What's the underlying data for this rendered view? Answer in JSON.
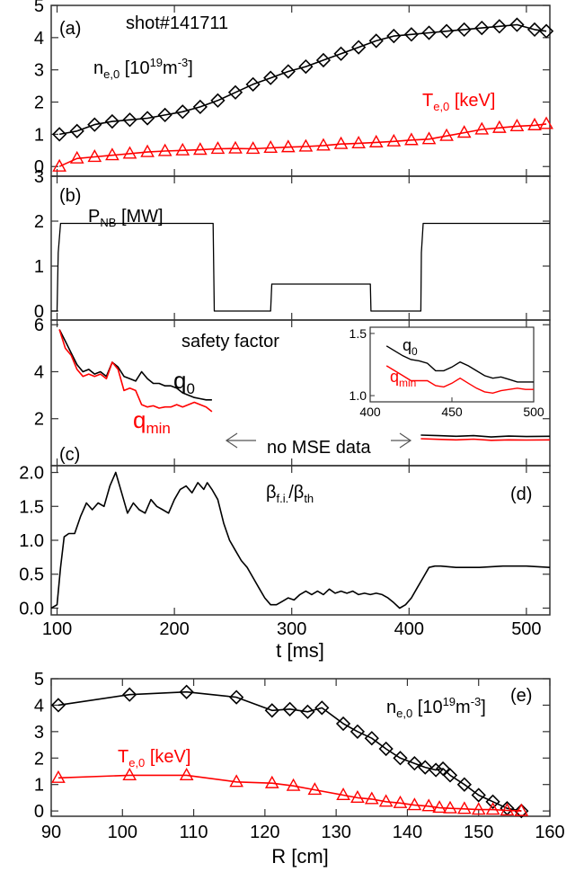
{
  "colors": {
    "black": "#000000",
    "red": "#ff0000",
    "frame": "#333333"
  },
  "panels": {
    "a": {
      "letter": "(a)",
      "shot": "shot#141711",
      "label_ne": {
        "base": "n",
        "sub": "e,0",
        "tail": " [10",
        "sup": "19",
        "tail2": "m",
        "sup2": "-3",
        "end": "]"
      },
      "label_te": {
        "base": "T",
        "sub": "e,0",
        "tail": " [keV]"
      }
    },
    "b": {
      "letter": "(b)",
      "label": {
        "base": "P",
        "sub": "NB",
        "tail": " [MW]"
      }
    },
    "c": {
      "letter": "(c)",
      "title": "safety factor",
      "q0": {
        "base": "q",
        "sub": "0"
      },
      "qmin": {
        "base": "q",
        "sub": "min"
      },
      "no_mse": "no MSE data"
    },
    "d": {
      "letter": "(d)",
      "label": {
        "base": "β",
        "sub": "f.i.",
        "mid": "/β",
        "sub2": "th"
      }
    },
    "e": {
      "letter": "(e)",
      "label_ne": {
        "base": "n",
        "sub": "e,0",
        "tail": " [10",
        "sup": "19",
        "tail2": "m",
        "sup2": "-3",
        "end": "]"
      },
      "label_te": {
        "base": "T",
        "sub": "e,0",
        "tail": " [keV]"
      }
    },
    "time_axis": {
      "label": "t  [ms]",
      "ticks": [
        "100",
        "200",
        "300",
        "400",
        "500"
      ]
    },
    "r_axis": {
      "label": "R  [cm]",
      "ticks": [
        "90",
        "100",
        "110",
        "120",
        "130",
        "140",
        "150",
        "160"
      ]
    }
  },
  "chart_data": [
    {
      "id": "a",
      "type": "line",
      "xlim": [
        95,
        520
      ],
      "ylim": [
        -0.3,
        5.0
      ],
      "yticks": [
        "0",
        "1",
        "2",
        "3",
        "4",
        "5"
      ],
      "series": [
        {
          "name": "n_e,0",
          "color": "#000000",
          "marker": "diamond",
          "x": [
            102,
            117,
            132,
            147,
            162,
            177,
            192,
            207,
            222,
            237,
            252,
            267,
            282,
            297,
            312,
            327,
            342,
            357,
            372,
            387,
            402,
            417,
            432,
            447,
            462,
            477,
            492,
            507,
            517
          ],
          "y": [
            1.0,
            1.1,
            1.3,
            1.4,
            1.45,
            1.5,
            1.6,
            1.7,
            1.85,
            2.05,
            2.3,
            2.55,
            2.75,
            2.95,
            3.1,
            3.3,
            3.5,
            3.7,
            3.9,
            4.05,
            4.1,
            4.15,
            4.2,
            4.25,
            4.3,
            4.35,
            4.4,
            4.25,
            4.2
          ]
        },
        {
          "name": "T_e,0",
          "color": "#ff0000",
          "marker": "triangle",
          "x": [
            102,
            117,
            132,
            147,
            162,
            177,
            192,
            207,
            222,
            237,
            252,
            267,
            282,
            297,
            312,
            327,
            342,
            357,
            372,
            387,
            402,
            417,
            432,
            447,
            462,
            477,
            492,
            507,
            517
          ],
          "y": [
            0.0,
            0.25,
            0.3,
            0.35,
            0.4,
            0.45,
            0.48,
            0.5,
            0.52,
            0.55,
            0.56,
            0.55,
            0.58,
            0.6,
            0.62,
            0.65,
            0.7,
            0.72,
            0.75,
            0.78,
            0.82,
            0.85,
            0.95,
            1.05,
            1.15,
            1.2,
            1.25,
            1.28,
            1.32
          ]
        }
      ]
    },
    {
      "id": "b",
      "type": "line",
      "xlim": [
        95,
        520
      ],
      "ylim": [
        -0.2,
        3.0
      ],
      "yticks": [
        "0",
        "1",
        "2",
        "3"
      ],
      "series": [
        {
          "name": "P_NB",
          "color": "#000000",
          "x": [
            95,
            100,
            101,
            103,
            233,
            234,
            282,
            283,
            284,
            366,
            367,
            367.5,
            410,
            410.5,
            412,
            520
          ],
          "y": [
            0,
            0,
            1.3,
            1.95,
            1.95,
            0,
            0,
            0.6,
            0.6,
            0.6,
            0.6,
            0,
            0,
            1.3,
            1.95,
            1.95
          ]
        }
      ]
    },
    {
      "id": "c",
      "type": "line",
      "xlim": [
        95,
        520
      ],
      "ylim": [
        0.0,
        6.2
      ],
      "yticks": [
        "2",
        "4",
        "6"
      ],
      "series": [
        {
          "name": "q0",
          "color": "#000000",
          "x": [
            102,
            107,
            112,
            117,
            122,
            127,
            132,
            137,
            142,
            147,
            152,
            157,
            162,
            167,
            172,
            177,
            182,
            187,
            192,
            197,
            202,
            207,
            212,
            217,
            222,
            227,
            232
          ],
          "y": [
            5.8,
            5.3,
            4.8,
            4.3,
            4.0,
            4.1,
            3.9,
            4.0,
            3.8,
            4.4,
            4.2,
            3.8,
            3.7,
            3.6,
            4.0,
            3.7,
            3.5,
            3.5,
            3.4,
            3.4,
            3.3,
            3.1,
            3.0,
            2.9,
            2.85,
            2.8,
            2.8
          ]
        },
        {
          "name": "qmin",
          "color": "#ff0000",
          "x": [
            102,
            107,
            112,
            117,
            122,
            127,
            132,
            137,
            142,
            147,
            152,
            157,
            162,
            167,
            172,
            177,
            182,
            187,
            192,
            197,
            202,
            207,
            212,
            217,
            222,
            227,
            232
          ],
          "y": [
            5.8,
            5.0,
            4.7,
            4.1,
            3.8,
            3.9,
            3.8,
            3.9,
            3.7,
            4.4,
            4.1,
            3.2,
            3.3,
            3.2,
            2.6,
            2.5,
            2.55,
            2.45,
            2.5,
            2.5,
            2.6,
            2.5,
            2.6,
            2.7,
            2.6,
            2.5,
            2.3
          ]
        },
        {
          "name": "q0 late",
          "color": "#000000",
          "x": [
            410,
            425,
            440,
            455,
            470,
            485,
            500,
            520
          ],
          "y": [
            1.3,
            1.28,
            1.25,
            1.28,
            1.22,
            1.26,
            1.24,
            1.25
          ]
        },
        {
          "name": "qmin late",
          "color": "#ff0000",
          "x": [
            410,
            425,
            440,
            455,
            470,
            485,
            500,
            520
          ],
          "y": [
            1.15,
            1.12,
            1.1,
            1.13,
            1.08,
            1.1,
            1.09,
            1.1
          ]
        }
      ],
      "inset": {
        "xlim": [
          410,
          500
        ],
        "ylim": [
          0.95,
          1.55
        ],
        "xticks": [
          "400",
          "450",
          "500"
        ],
        "yticks": [
          "1.0",
          "1.5"
        ],
        "series": [
          {
            "name": "q0",
            "color": "#000000",
            "x": [
              410,
              415,
              420,
              425,
              430,
              435,
              440,
              445,
              450,
              455,
              460,
              465,
              470,
              475,
              480,
              485,
              490,
              495,
              500
            ],
            "y": [
              1.4,
              1.36,
              1.32,
              1.29,
              1.28,
              1.26,
              1.2,
              1.2,
              1.23,
              1.27,
              1.24,
              1.2,
              1.16,
              1.14,
              1.15,
              1.13,
              1.11,
              1.11,
              1.11
            ]
          },
          {
            "name": "qmin",
            "color": "#ff0000",
            "x": [
              410,
              415,
              420,
              425,
              430,
              435,
              440,
              445,
              450,
              455,
              460,
              465,
              470,
              475,
              480,
              485,
              490,
              495,
              500
            ],
            "y": [
              1.24,
              1.2,
              1.16,
              1.12,
              1.12,
              1.12,
              1.08,
              1.07,
              1.1,
              1.14,
              1.1,
              1.06,
              1.03,
              1.02,
              1.04,
              1.05,
              1.06,
              1.05,
              1.05
            ]
          }
        ]
      }
    },
    {
      "id": "d",
      "type": "line",
      "xlim": [
        95,
        520
      ],
      "ylim": [
        -0.1,
        2.1
      ],
      "yticks": [
        "0.0",
        "0.5",
        "1.0",
        "1.5",
        "2.0"
      ],
      "series": [
        {
          "name": "beta ratio",
          "color": "#000000",
          "x": [
            95,
            100,
            103,
            106,
            110,
            115,
            120,
            125,
            130,
            135,
            140,
            145,
            150,
            155,
            160,
            165,
            170,
            175,
            180,
            185,
            190,
            195,
            200,
            205,
            210,
            215,
            220,
            225,
            228,
            232,
            237,
            242,
            247,
            252,
            257,
            262,
            267,
            272,
            277,
            282,
            287,
            292,
            297,
            302,
            307,
            312,
            317,
            322,
            327,
            332,
            337,
            342,
            347,
            352,
            357,
            362,
            367,
            372,
            377,
            382,
            387,
            392,
            397,
            402,
            407,
            412,
            417,
            422,
            427,
            440,
            460,
            480,
            500,
            520
          ],
          "y": [
            0.0,
            0.05,
            0.6,
            1.05,
            1.1,
            1.1,
            1.35,
            1.55,
            1.45,
            1.55,
            1.5,
            1.8,
            2.0,
            1.7,
            1.4,
            1.55,
            1.45,
            1.4,
            1.6,
            1.5,
            1.45,
            1.4,
            1.6,
            1.75,
            1.8,
            1.7,
            1.85,
            1.75,
            1.85,
            1.75,
            1.6,
            1.25,
            1.0,
            0.85,
            0.7,
            0.6,
            0.45,
            0.3,
            0.15,
            0.05,
            0.05,
            0.1,
            0.15,
            0.12,
            0.2,
            0.25,
            0.2,
            0.25,
            0.2,
            0.28,
            0.22,
            0.25,
            0.22,
            0.25,
            0.2,
            0.22,
            0.2,
            0.22,
            0.2,
            0.15,
            0.08,
            0.0,
            0.05,
            0.15,
            0.3,
            0.45,
            0.6,
            0.62,
            0.62,
            0.6,
            0.6,
            0.62,
            0.62,
            0.6
          ]
        }
      ]
    },
    {
      "id": "e",
      "type": "line",
      "xlim": [
        90,
        160
      ],
      "ylim": [
        -0.2,
        5.0
      ],
      "yticks": [
        "0",
        "1",
        "2",
        "3",
        "4",
        "5"
      ],
      "series": [
        {
          "name": "n_e,0 profile",
          "color": "#000000",
          "marker": "diamond",
          "x": [
            91,
            101,
            109,
            116,
            121,
            123.5,
            126,
            128,
            131,
            133,
            135,
            137,
            139,
            141,
            142.5,
            144,
            145,
            146,
            148,
            150,
            152,
            154,
            156
          ],
          "y": [
            4.0,
            4.4,
            4.5,
            4.3,
            3.8,
            3.85,
            3.75,
            3.9,
            3.3,
            3.0,
            2.75,
            2.35,
            2.0,
            1.8,
            1.65,
            1.55,
            1.6,
            1.35,
            1.0,
            0.6,
            0.35,
            0.1,
            0.0
          ]
        },
        {
          "name": "T_e,0 profile",
          "color": "#ff0000",
          "marker": "triangle",
          "x": [
            91,
            101,
            109,
            116,
            121,
            124,
            127,
            131,
            133,
            135,
            137,
            139,
            141,
            143,
            144.5,
            146,
            148,
            150,
            152,
            154,
            156
          ],
          "y": [
            1.25,
            1.35,
            1.35,
            1.1,
            1.05,
            0.95,
            0.8,
            0.6,
            0.5,
            0.45,
            0.35,
            0.3,
            0.22,
            0.18,
            0.12,
            0.1,
            0.08,
            0.05,
            0.05,
            0.02,
            0.0
          ]
        }
      ]
    }
  ]
}
